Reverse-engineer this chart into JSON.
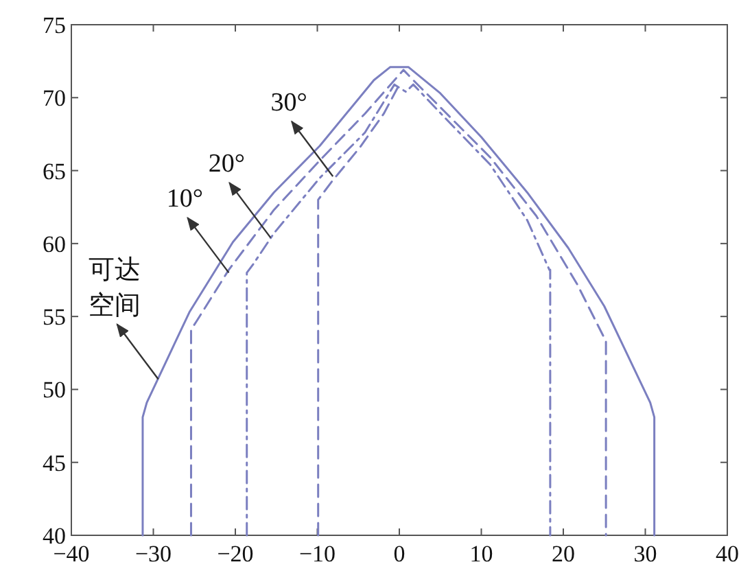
{
  "chart_data": {
    "type": "line",
    "xlim": [
      -40,
      40
    ],
    "ylim": [
      40,
      75
    ],
    "xticks": [
      -40,
      -30,
      -20,
      -10,
      0,
      10,
      20,
      30,
      40
    ],
    "yticks": [
      40,
      45,
      50,
      55,
      60,
      65,
      70,
      75
    ],
    "series": [
      {
        "color": "#7b7fc0",
        "line_style": "solid",
        "x": [
          -31.3,
          -31.3,
          -30.8,
          -25.6,
          -20.3,
          -15.3,
          -9.7,
          -3.1,
          -1.1,
          1.1,
          5.0,
          10.0,
          15.6,
          20.6,
          25.0,
          30.6,
          31.1,
          31.1
        ],
        "values": [
          40,
          48.1,
          49.1,
          55.3,
          60.1,
          63.5,
          66.7,
          71.2,
          72.1,
          72.1,
          70.3,
          67.3,
          63.5,
          59.7,
          55.7,
          49.1,
          48.1,
          40
        ]
      },
      {
        "color": "#7b7fc0",
        "line_style": "dashed",
        "x": [
          -25.4,
          -25.4,
          -24.7,
          -20.8,
          -15.3,
          -9.7,
          -4.2,
          0.5,
          1.7,
          5.6,
          11.1,
          16.7,
          21.7,
          25.2,
          25.2
        ],
        "values": [
          40,
          54.1,
          54.7,
          58.2,
          62.3,
          65.7,
          68.9,
          71.9,
          71.2,
          69.0,
          65.9,
          61.9,
          57.2,
          53.3,
          40
        ]
      },
      {
        "color": "#7b7fc0",
        "line_style": "dashdot",
        "x": [
          -18.6,
          -18.6,
          -17.8,
          -15.3,
          -9.7,
          -4.2,
          -0.6,
          0.8,
          1.7,
          5.6,
          11.1,
          15.6,
          18.3,
          18.4,
          18.4
        ],
        "values": [
          40,
          58.0,
          58.6,
          60.7,
          64.5,
          67.6,
          70.9,
          70.4,
          70.9,
          68.6,
          65.4,
          61.6,
          58.2,
          58.2,
          40
        ]
      },
      {
        "color": "#7b7fc0",
        "line_style": "dashed",
        "x": [
          -9.9,
          -9.9,
          -8.3,
          -4.8,
          -1.9,
          0
        ],
        "values": [
          40,
          63.0,
          64.2,
          66.6,
          68.9,
          70.9
        ]
      }
    ],
    "annotations": [
      {
        "text": "30°",
        "x": -8.1,
        "y": 64.6
      },
      {
        "text": "20°",
        "x": -15.7,
        "y": 60.4
      },
      {
        "text": "10°",
        "x": -20.8,
        "y": 58.0
      },
      {
        "text": "可达空间",
        "x": -29.4,
        "y": 50.7
      }
    ]
  }
}
